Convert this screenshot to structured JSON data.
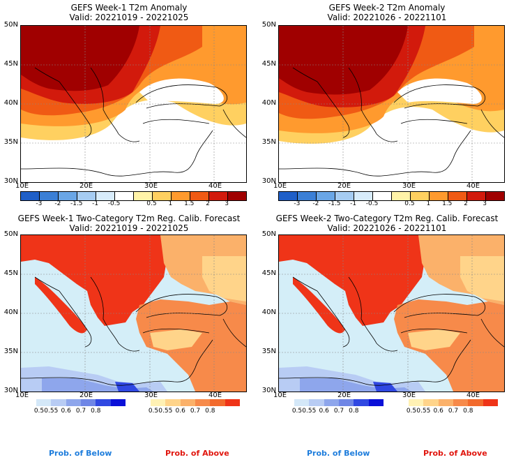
{
  "panels": [
    {
      "title": "GEFS Week-1 T2m Anomaly",
      "valid": "Valid: 20221019 - 20221025"
    },
    {
      "title": "GEFS Week-2 T2m Anomaly",
      "valid": "Valid: 20221026 - 20221101"
    },
    {
      "title": "GEFS Week-1 Two-Category T2m Reg. Calib. Forecast",
      "valid": "Valid: 20221019 - 20221025"
    },
    {
      "title": "GEFS Week-2 Two-Category T2m Reg. Calib. Forecast",
      "valid": "Valid: 20221026 - 20221101"
    }
  ],
  "lat_labels": [
    "50N",
    "45N",
    "40N",
    "35N",
    "30N"
  ],
  "lon_labels": [
    "10E",
    "20E",
    "30E",
    "40E"
  ],
  "anomaly_colorbar": {
    "labels": [
      "-3",
      "-2",
      "-1.5",
      "-1",
      "-0.5",
      "0.5",
      "1",
      "1.5",
      "2",
      "3"
    ],
    "colors": [
      "#1f5fc8",
      "#3b7fd6",
      "#6aa6e6",
      "#a6ccf2",
      "#d8ecfb",
      "#ffffff",
      "#fff3a8",
      "#ffd060",
      "#ff9a2e",
      "#f05a14",
      "#d21a0c",
      "#a00000"
    ]
  },
  "below_colorbar": {
    "labels": [
      "0.5",
      "0.55",
      "0.6",
      "0.7",
      "0.8"
    ],
    "colors": [
      "#d4e8f8",
      "#b8ccf4",
      "#8ea6ec",
      "#6f86e6",
      "#3048e2",
      "#0a10d8"
    ]
  },
  "above_colorbar": {
    "labels": [
      "0.5",
      "0.55",
      "0.6",
      "0.7",
      "0.8"
    ],
    "colors": [
      "#fff1b4",
      "#ffd48a",
      "#fbb16a",
      "#f78a4a",
      "#f26a2c",
      "#ef3418"
    ]
  },
  "prob_labels": {
    "below": "Prob. of Below",
    "above": "Prob. of Above"
  },
  "prob_label_colors": {
    "below": "#1e7ddc",
    "above": "#e0160e"
  }
}
